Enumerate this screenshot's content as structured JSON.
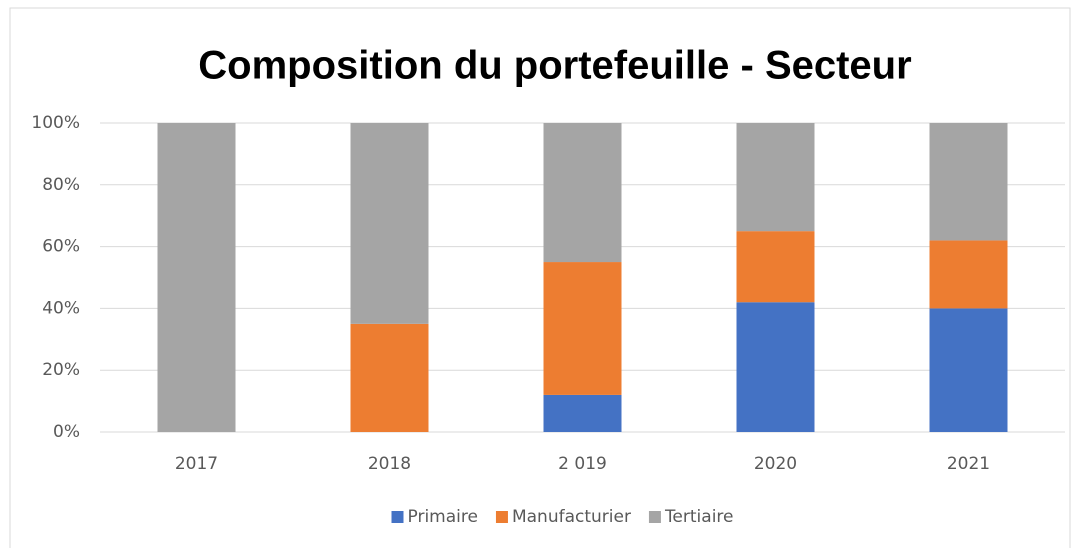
{
  "chart_data": {
    "type": "stacked_bar",
    "title": "Composition du portefeuille - Secteur",
    "categories": [
      "2017",
      "2018",
      "2 019",
      "2020",
      "2021"
    ],
    "series": [
      {
        "name": "Primaire",
        "color": "#4472c4",
        "values": [
          0,
          0,
          12,
          42,
          40
        ]
      },
      {
        "name": "Manufacturier",
        "color": "#ed7d31",
        "values": [
          0,
          35,
          43,
          23,
          22
        ]
      },
      {
        "name": "Tertiaire",
        "color": "#a5a5a5",
        "values": [
          100,
          65,
          45,
          35,
          38
        ]
      }
    ],
    "ylim": [
      0,
      100
    ],
    "yticks": [
      {
        "value": 0,
        "label": "0%"
      },
      {
        "value": 20,
        "label": "20%"
      },
      {
        "value": 40,
        "label": "40%"
      },
      {
        "value": 60,
        "label": "60%"
      },
      {
        "value": 80,
        "label": "80%"
      },
      {
        "value": 100,
        "label": "100%"
      }
    ],
    "grid": true,
    "legend": "bottom"
  }
}
